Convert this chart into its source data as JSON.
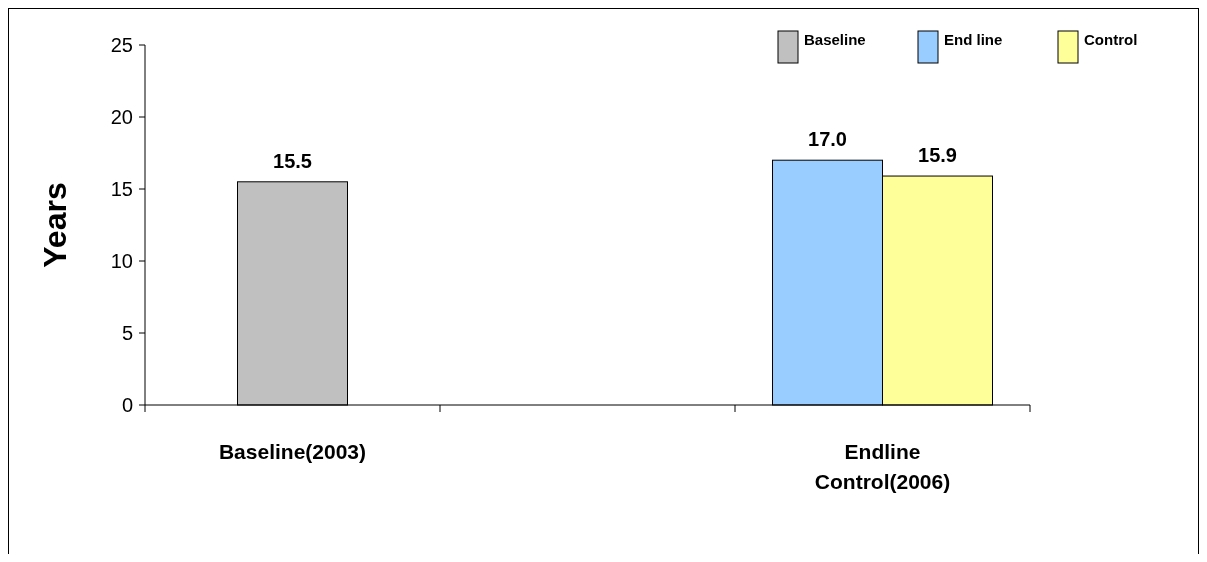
{
  "chart_data": {
    "type": "bar",
    "ylabel": "Years",
    "categories": [
      "Baseline(2003)",
      null,
      "Endline Control(2006)"
    ],
    "series": [
      {
        "name": "Baseline",
        "color": "#c0c0c0",
        "values": [
          15.5,
          null,
          null
        ],
        "value_labels": [
          "15.5",
          null,
          null
        ]
      },
      {
        "name": "End line",
        "color": "#99ccff",
        "values": [
          null,
          null,
          17.0
        ],
        "value_labels": [
          null,
          null,
          "17.0"
        ]
      },
      {
        "name": "Control",
        "color": "#ffff99",
        "values": [
          null,
          null,
          15.9
        ],
        "value_labels": [
          null,
          null,
          "15.9"
        ]
      }
    ],
    "ylim": [
      0,
      25
    ],
    "yticks": [
      0,
      5,
      10,
      15,
      20,
      25
    ],
    "grid": false,
    "legend": "top right"
  }
}
